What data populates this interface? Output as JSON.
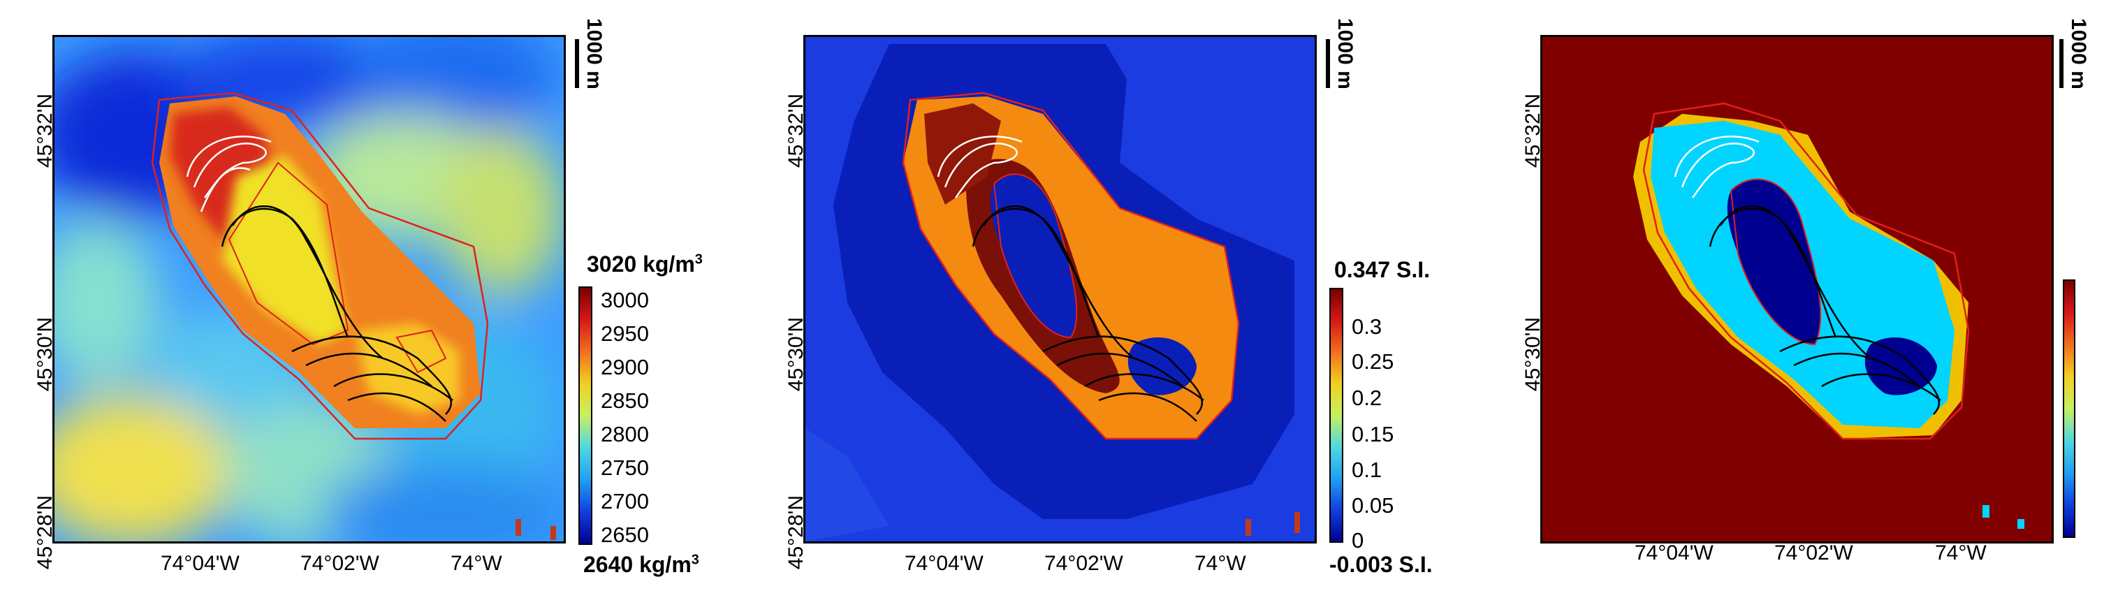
{
  "panels": [
    {
      "lat_labels": [
        "45°32'N",
        "45°30'N",
        "45°28'N"
      ],
      "lon_labels": [
        "74°04'W",
        "74°02'W",
        "74°W"
      ],
      "scale_label": "1000 m",
      "colorbar": {
        "top_label": "3020 kg/m",
        "top_sup": "3",
        "bottom_label": "2640 kg/m",
        "bottom_sup": "3",
        "ticks": [
          "3000",
          "2950",
          "2900",
          "2850",
          "2800",
          "2750",
          "2700",
          "2650"
        ]
      }
    },
    {
      "lat_labels": [
        "45°32'N",
        "45°30'N",
        "45°28'N"
      ],
      "lon_labels": [
        "74°04'W",
        "74°02'W",
        "74°W"
      ],
      "scale_label": "1000 m",
      "colorbar": {
        "top_label": "0.347 S.I.",
        "bottom_label": "-0.003 S.I.",
        "ticks": [
          "0.3",
          "0.25",
          "0.2",
          "0.15",
          "0.1",
          "0.05",
          "0"
        ]
      }
    },
    {
      "lat_labels": [
        "45°32'N",
        "45°30'N"
      ],
      "lon_labels": [
        "74°04'W",
        "74°02'W",
        "74°W"
      ],
      "scale_label": "1000 m"
    }
  ],
  "colors": {
    "pluton_outline": "#e0201c",
    "contours_dark": "#000000",
    "contours_light": "#ffffff"
  }
}
